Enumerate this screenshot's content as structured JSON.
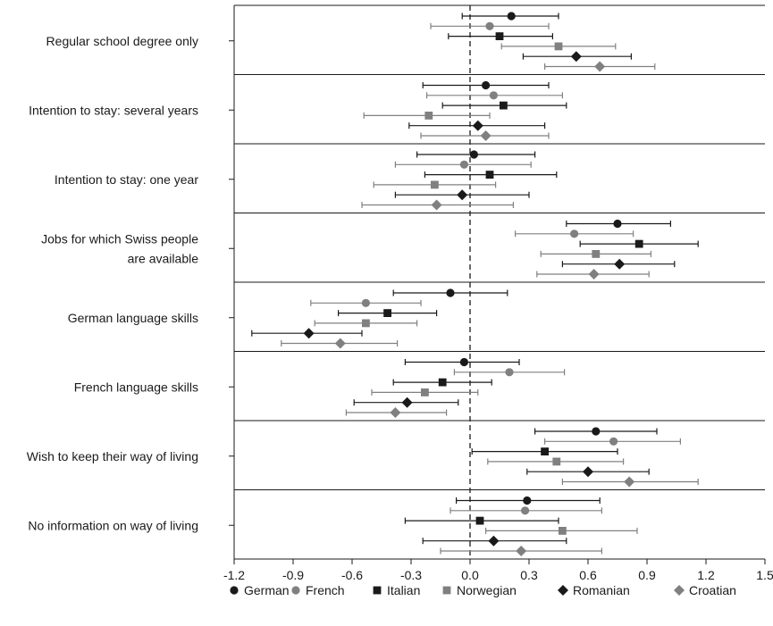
{
  "chart_data": {
    "type": "scatter",
    "subtype": "coefficient-plot-with-error-bars",
    "xlim": [
      -1.2,
      1.5
    ],
    "xticks": [
      -1.2,
      -0.9,
      -0.6,
      -0.3,
      0.0,
      0.3,
      0.6,
      0.9,
      1.2,
      1.5
    ],
    "xtick_labels": [
      "-1.2",
      "-0.9",
      "-0.6",
      "-0.3",
      "0.0",
      "0.3",
      "0.6",
      "0.9",
      "1.2",
      "1.5"
    ],
    "reference_line": 0.0,
    "grid": false,
    "legend_position": "bottom",
    "categories": [
      [
        "Regular school degree only"
      ],
      [
        "Intention to stay: several years"
      ],
      [
        "Intention to stay: one year"
      ],
      [
        "Jobs for which Swiss people",
        "are available"
      ],
      [
        "German language skills"
      ],
      [
        "French language skills"
      ],
      [
        "Wish to keep their way of living"
      ],
      [
        "No information on way of living"
      ]
    ],
    "series": [
      {
        "name": "German",
        "marker": "circle",
        "color": "#1a1a1a",
        "values": [
          0.21,
          0.08,
          0.02,
          0.75,
          -0.1,
          -0.03,
          0.64,
          0.29
        ],
        "ci_low": [
          -0.04,
          -0.24,
          -0.27,
          0.49,
          -0.39,
          -0.33,
          0.33,
          -0.07
        ],
        "ci_high": [
          0.45,
          0.4,
          0.33,
          1.02,
          0.19,
          0.25,
          0.95,
          0.66
        ]
      },
      {
        "name": "French",
        "marker": "circle",
        "color": "#808080",
        "values": [
          0.1,
          0.12,
          -0.03,
          0.53,
          -0.53,
          0.2,
          0.73,
          0.28
        ],
        "ci_low": [
          -0.2,
          -0.22,
          -0.38,
          0.23,
          -0.81,
          -0.08,
          0.38,
          -0.1
        ],
        "ci_high": [
          0.4,
          0.47,
          0.31,
          0.83,
          -0.25,
          0.48,
          1.07,
          0.67
        ]
      },
      {
        "name": "Italian",
        "marker": "square",
        "color": "#1a1a1a",
        "values": [
          0.15,
          0.17,
          0.1,
          0.86,
          -0.42,
          -0.14,
          0.38,
          0.05
        ],
        "ci_low": [
          -0.11,
          -0.14,
          -0.23,
          0.56,
          -0.67,
          -0.39,
          0.01,
          -0.33
        ],
        "ci_high": [
          0.42,
          0.49,
          0.44,
          1.16,
          -0.17,
          0.11,
          0.75,
          0.45
        ]
      },
      {
        "name": "Norwegian",
        "marker": "square",
        "color": "#808080",
        "values": [
          0.45,
          -0.21,
          -0.18,
          0.64,
          -0.53,
          -0.23,
          0.44,
          0.47
        ],
        "ci_low": [
          0.16,
          -0.54,
          -0.49,
          0.36,
          -0.79,
          -0.5,
          0.09,
          0.08
        ],
        "ci_high": [
          0.74,
          0.1,
          0.13,
          0.92,
          -0.27,
          0.04,
          0.78,
          0.85
        ]
      },
      {
        "name": "Romanian",
        "marker": "diamond",
        "color": "#1a1a1a",
        "values": [
          0.54,
          0.04,
          -0.04,
          0.76,
          -0.82,
          -0.32,
          0.6,
          0.12
        ],
        "ci_low": [
          0.27,
          -0.31,
          -0.38,
          0.47,
          -1.11,
          -0.59,
          0.29,
          -0.24
        ],
        "ci_high": [
          0.82,
          0.38,
          0.3,
          1.04,
          -0.55,
          -0.06,
          0.91,
          0.49
        ]
      },
      {
        "name": "Croatian",
        "marker": "diamond",
        "color": "#808080",
        "values": [
          0.66,
          0.08,
          -0.17,
          0.63,
          -0.66,
          -0.38,
          0.81,
          0.26
        ],
        "ci_low": [
          0.38,
          -0.25,
          -0.55,
          0.34,
          -0.96,
          -0.63,
          0.47,
          -0.15
        ],
        "ci_high": [
          0.94,
          0.4,
          0.22,
          0.91,
          -0.37,
          -0.12,
          1.16,
          0.67
        ]
      }
    ]
  }
}
